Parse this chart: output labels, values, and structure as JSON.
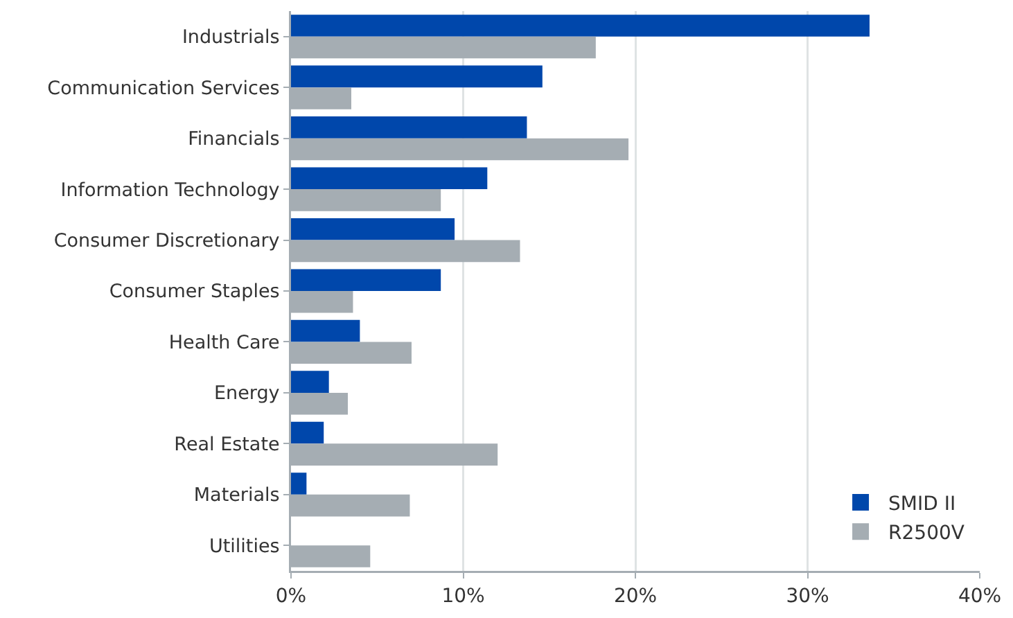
{
  "chart_data": {
    "type": "bar",
    "orientation": "horizontal",
    "categories": [
      "Industrials",
      "Communication Services",
      "Financials",
      "Information Technology",
      "Consumer Discretionary",
      "Consumer Staples",
      "Health Care",
      "Energy",
      "Real Estate",
      "Materials",
      "Utilities"
    ],
    "series": [
      {
        "name": "SMID II",
        "color": "#0047ab",
        "values": [
          33.6,
          14.6,
          13.7,
          11.4,
          9.5,
          8.7,
          4.0,
          2.2,
          1.9,
          0.9,
          0
        ]
      },
      {
        "name": "R2500V",
        "color": "#a5adb3",
        "values": [
          17.7,
          3.5,
          19.6,
          8.7,
          13.3,
          3.6,
          7.0,
          3.3,
          12.0,
          6.9,
          4.6
        ]
      }
    ],
    "xlim": [
      0,
      40
    ],
    "xticks": [
      {
        "value": 0,
        "label": "0%"
      },
      {
        "value": 10,
        "label": "10%"
      },
      {
        "value": 20,
        "label": "20%"
      },
      {
        "value": 30,
        "label": "30%"
      },
      {
        "value": 40,
        "label": "40%"
      }
    ],
    "grid": "x",
    "legend": "bottom right"
  }
}
